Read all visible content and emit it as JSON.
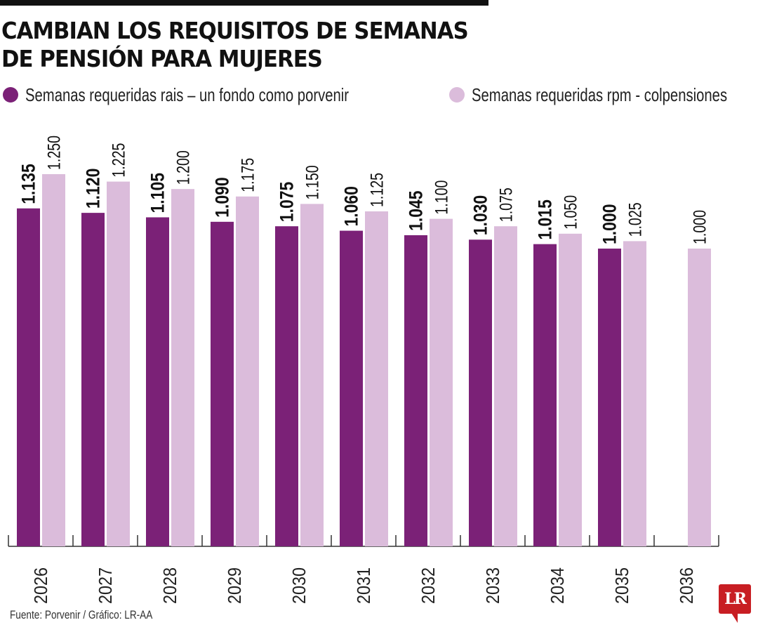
{
  "header": {
    "title_line1": "CAMBIAN LOS REQUISITOS DE SEMANAS",
    "title_line2": "DE PENSIÓN PARA MUJERES"
  },
  "legend": [
    {
      "label": "Semanas requeridas rais – un fondo como porvenir",
      "color": "#7b2177"
    },
    {
      "label": "Semanas requeridas rpm - colpensiones",
      "color": "#dbbcdb"
    }
  ],
  "footer": {
    "source": "Fuente: Porvenir / Gráfico: LR-AA",
    "logo": "LR"
  },
  "chart_data": {
    "type": "bar",
    "title": "CAMBIAN LOS REQUISITOS DE SEMANAS DE PENSIÓN PARA MUJERES",
    "xlabel": "",
    "ylabel": "",
    "ylim": [
      0,
      1250
    ],
    "grid": false,
    "legend_position": "top",
    "categories": [
      "2026",
      "2027",
      "2028",
      "2029",
      "2030",
      "2031",
      "2032",
      "2033",
      "2034",
      "2035",
      "2036"
    ],
    "series": [
      {
        "name": "Semanas requeridas rais – un fondo como porvenir",
        "color": "#7b2177",
        "values": [
          1135,
          1120,
          1105,
          1090,
          1075,
          1060,
          1045,
          1030,
          1015,
          1000,
          null
        ],
        "labels": [
          "1.135",
          "1.120",
          "1.105",
          "1.090",
          "1.075",
          "1.060",
          "1.045",
          "1.030",
          "1.015",
          "1.000",
          ""
        ]
      },
      {
        "name": "Semanas requeridas rpm - colpensiones",
        "color": "#dbbcdb",
        "values": [
          1250,
          1225,
          1200,
          1175,
          1150,
          1125,
          1100,
          1075,
          1050,
          1025,
          1000
        ],
        "labels": [
          "1.250",
          "1.225",
          "1.200",
          "1.175",
          "1.150",
          "1.125",
          "1.100",
          "1.075",
          "1.050",
          "1.025",
          "1.000"
        ]
      }
    ]
  }
}
